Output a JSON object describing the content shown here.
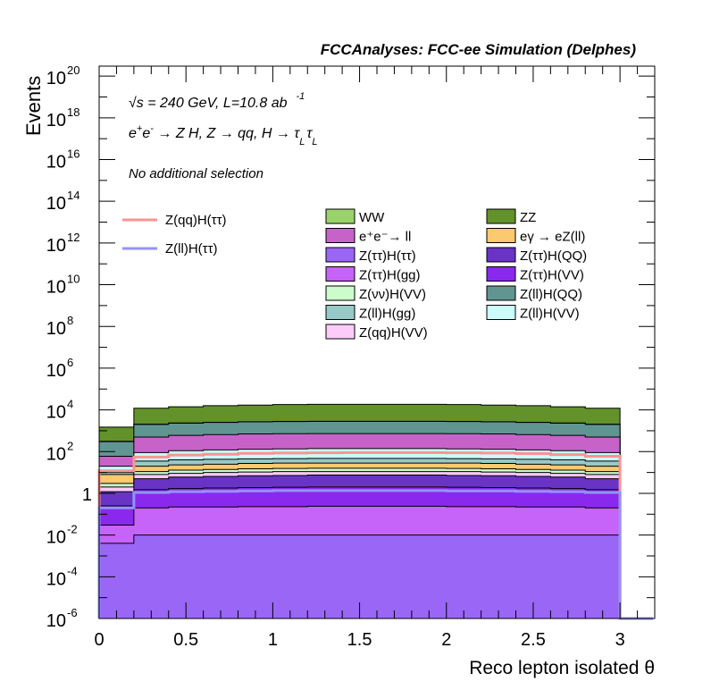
{
  "header": {
    "title": "FCCAnalyses: FCC-ee Simulation (Delphes)"
  },
  "annotations": {
    "energy_prefix": "√s",
    "energy_rest": " = 240 GeV, L=10.8 ab",
    "energy_sup": "-1",
    "process_e": "e",
    "process_plus": "+",
    "process_e2": "e",
    "process_minus": "-",
    "process_rest": " → Z H, Z  → qq, H  → ",
    "process_tau1": "τ",
    "process_sub1": "L",
    "process_tau2": "τ",
    "process_sub2": "L",
    "selection": "No additional selection"
  },
  "colors": {
    "WW": "#99d36a",
    "ZZ": "#63922b",
    "ee_ll": "#c763c8",
    "egamma_eZll": "#fbc96e",
    "Ztautau_Htautau": "#9a66f6",
    "Ztautau_HQQ": "#6934c6",
    "Ztautau_Hgg": "#c663f8",
    "Ztautau_HVV": "#8b28ee",
    "Znunu_HVV": "#ccfbcc",
    "Zll_HQQ": "#609592",
    "Zll_Hgg": "#98c9c9",
    "Zll_HVV": "#cbfbfb",
    "Zqq_HVV": "#fccbfa",
    "sig_qq": "#fb9393",
    "sig_ll": "#9393fb"
  },
  "chart_data": {
    "type": "histogram-stacked",
    "title": "FCCAnalyses: FCC-ee Simulation (Delphes)",
    "xlabel": "Reco lepton isolated θ",
    "ylabel": "Events",
    "xlim": [
      0,
      3.2
    ],
    "ylim": [
      1e-06,
      3e+20
    ],
    "yscale": "log",
    "x_ticks": [
      "0",
      "0.5",
      "1",
      "1.5",
      "2",
      "2.5",
      "3"
    ],
    "y_ticks": [
      {
        "b": "1",
        "e": "20"
      },
      {
        "b": "1",
        "e": "18"
      },
      {
        "b": "1",
        "e": "16"
      },
      {
        "b": "1",
        "e": "14"
      },
      {
        "b": "1",
        "e": "12"
      },
      {
        "b": "1",
        "e": "10"
      },
      {
        "b": "1",
        "e": "8"
      },
      {
        "b": "1",
        "e": "6"
      },
      {
        "b": "1",
        "e": "4"
      },
      {
        "b": "1",
        "e": "2"
      },
      {
        "b": "1",
        "e": ""
      },
      {
        "b": "1",
        "e": "-2"
      },
      {
        "b": "1",
        "e": "-4"
      },
      {
        "b": "1",
        "e": "-6"
      }
    ],
    "y_tick_values": [
      1e+20,
      1e+18,
      1e+16,
      100000000000000.0,
      1000000000000.0,
      10000000000.0,
      100000000.0,
      1000000.0,
      10000.0,
      100.0,
      1,
      0.01,
      0.0001,
      1e-06
    ],
    "bin_edges": [
      0,
      0.2,
      0.4,
      0.6,
      0.8,
      1.0,
      1.2,
      1.4,
      1.6,
      1.8,
      2.0,
      2.2,
      2.4,
      2.6,
      2.8,
      3.0
    ],
    "stack_totals": {
      "Ztautau_Htautau": [
        0.004,
        0.01,
        0.01,
        0.01,
        0.01,
        0.01,
        0.01,
        0.01,
        0.01,
        0.01,
        0.01,
        0.01,
        0.01,
        0.01,
        0.01
      ],
      "Ztautau_Hgg": [
        0.03,
        0.2,
        0.22,
        0.22,
        0.23,
        0.23,
        0.24,
        0.24,
        0.24,
        0.24,
        0.23,
        0.23,
        0.22,
        0.22,
        0.2
      ],
      "Ztautau_HVV": [
        0.25,
        1.5,
        1.7,
        1.8,
        1.9,
        1.95,
        2,
        2,
        2,
        2,
        1.95,
        1.9,
        1.8,
        1.7,
        1.5
      ],
      "Ztautau_HQQ": [
        1.2,
        5,
        6,
        6.5,
        7,
        7.2,
        7.5,
        7.5,
        7.5,
        7.5,
        7.2,
        7,
        6.5,
        6,
        5
      ],
      "Zqq_HVV": [
        2,
        8,
        9,
        10,
        10.5,
        11,
        11,
        11,
        11,
        11,
        11,
        10.5,
        10,
        9,
        8
      ],
      "Znunu_HVV": [
        3,
        11,
        13,
        14,
        15,
        15.5,
        16,
        16,
        16,
        16,
        15.5,
        15,
        14,
        13,
        11
      ],
      "egamma_eZll": [
        8,
        20,
        23,
        25,
        27,
        28,
        28,
        28,
        28,
        28,
        28,
        27,
        25,
        23,
        20
      ],
      "Zll_Hgg": [
        10,
        35,
        40,
        43,
        45,
        46,
        47,
        47,
        47,
        47,
        46,
        45,
        43,
        40,
        35
      ],
      "Zll_HVV": [
        20,
        90,
        110,
        120,
        130,
        135,
        140,
        140,
        140,
        140,
        135,
        130,
        120,
        110,
        90
      ],
      "ee_ll": [
        60,
        500,
        600,
        650,
        700,
        720,
        730,
        730,
        730,
        730,
        720,
        700,
        650,
        600,
        500
      ],
      "Zll_HQQ": [
        300,
        2000,
        2300,
        2500,
        2650,
        2750,
        2800,
        2800,
        2800,
        2800,
        2750,
        2650,
        2500,
        2300,
        2000
      ],
      "WW": [
        310,
        2050,
        2350,
        2550,
        2700,
        2800,
        2850,
        2850,
        2850,
        2850,
        2800,
        2700,
        2550,
        2350,
        2050
      ],
      "ZZ": [
        1500,
        12000,
        14000,
        16000,
        17000,
        18000,
        18500,
        18500,
        18500,
        18500,
        18000,
        17000,
        16000,
        14000,
        12000
      ]
    },
    "signals": {
      "sig_qq": [
        12,
        55,
        68,
        75,
        82,
        85,
        88,
        90,
        90,
        90,
        88,
        85,
        80,
        72,
        60
      ],
      "sig_ll": [
        0.2,
        1.1,
        1.2,
        1.25,
        1.3,
        1.35,
        1.35,
        1.35,
        1.35,
        1.35,
        1.3,
        1.3,
        1.25,
        1.2,
        1.1
      ]
    },
    "legend": [
      {
        "key": "WW",
        "label": "WW"
      },
      {
        "key": "ZZ",
        "label": "ZZ"
      },
      {
        "key": "ee_ll",
        "label": "e⁺e⁻→ ll"
      },
      {
        "key": "egamma_eZll",
        "label": "eγ → eZ(ll)"
      },
      {
        "key": "Ztautau_Htautau",
        "label": "Z(ττ)H(ττ)"
      },
      {
        "key": "Ztautau_HQQ",
        "label": "Z(ττ)H(QQ)"
      },
      {
        "key": "Ztautau_Hgg",
        "label": "Z(ττ)H(gg)"
      },
      {
        "key": "Ztautau_HVV",
        "label": "Z(ττ)H(VV)"
      },
      {
        "key": "Znunu_HVV",
        "label": "Z(νν)H(VV)"
      },
      {
        "key": "Zll_HQQ",
        "label": "Z(ll)H(QQ)"
      },
      {
        "key": "Zll_Hgg",
        "label": "Z(ll)H(gg)"
      },
      {
        "key": "Zll_HVV",
        "label": "Z(ll)H(VV)"
      },
      {
        "key": "Zqq_HVV",
        "label": "Z(qq)H(VV)"
      }
    ],
    "signal_legend": [
      {
        "key": "sig_qq",
        "label": "Z(qq)H(ττ)"
      },
      {
        "key": "sig_ll",
        "label": "Z(ll)H(ττ)"
      }
    ],
    "legend_placement": "top-right",
    "grid": false
  }
}
